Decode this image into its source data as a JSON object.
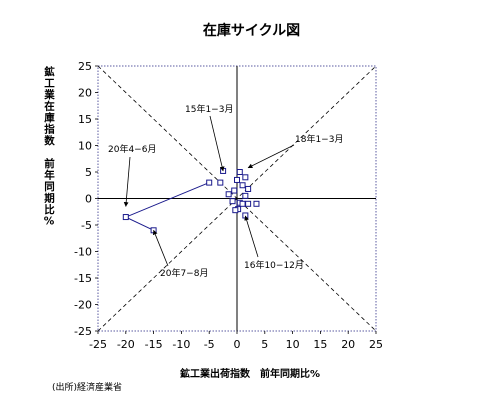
{
  "chart_data": {
    "type": "scatter",
    "title": "在庫サイクル図",
    "xlabel": "鉱工業出荷指数　前年同期比%",
    "ylabel": "鉱工業在庫指数　前年同期比%",
    "xlim": [
      -25,
      25
    ],
    "ylim": [
      -25,
      25
    ],
    "ticks": [
      -25,
      -20,
      -15,
      -10,
      -5,
      0,
      5,
      10,
      15,
      20,
      25
    ],
    "grid": false,
    "series": [
      {
        "points": [
          [
            -2.5,
            5.2
          ],
          [
            -3.0,
            3.0
          ],
          [
            -0.5,
            1.5
          ],
          [
            -1.5,
            0.8
          ],
          [
            -0.8,
            -0.5
          ],
          [
            0.0,
            3.5
          ],
          [
            0.5,
            5.0
          ],
          [
            1.5,
            4.0
          ],
          [
            1.0,
            2.5
          ],
          [
            2.0,
            1.8
          ],
          [
            1.5,
            0.5
          ],
          [
            0.5,
            -0.8
          ],
          [
            0.2,
            -2.0
          ],
          [
            1.5,
            -3.2
          ],
          [
            1.0,
            -1.0
          ],
          [
            2.0,
            -1.0
          ],
          [
            3.5,
            -1.0
          ],
          [
            -0.3,
            -2.2
          ],
          [
            -5.0,
            3.0
          ],
          [
            -20.0,
            -3.5
          ],
          [
            -15.0,
            -6.0
          ]
        ],
        "path": [
          [
            -5.0,
            3.0
          ],
          [
            -20.0,
            -3.5
          ],
          [
            -15.0,
            -6.0
          ]
        ],
        "marker": "square-open",
        "color": "#1a1a8c"
      }
    ],
    "annotations": [
      {
        "text": "15年1−3月",
        "target": [
          -2.5,
          5.2
        ]
      },
      {
        "text": "18年1−3月",
        "target": [
          2.0,
          5.8
        ]
      },
      {
        "text": "20年4−6月",
        "target": [
          -20.0,
          -1.5
        ]
      },
      {
        "text": "20年7−8月",
        "target": [
          -15.0,
          -6.0
        ]
      },
      {
        "text": "16年10−12月",
        "target": [
          1.5,
          -3.3
        ]
      }
    ],
    "colors": {
      "line": "#1a1a8c",
      "axis": "#000000",
      "frame": "#5a5aa0",
      "diagonal": "#000000"
    }
  },
  "source": "(出所)経済産業省",
  "ylabel_vertical": "鉱工業在庫指数　前年同期比%"
}
